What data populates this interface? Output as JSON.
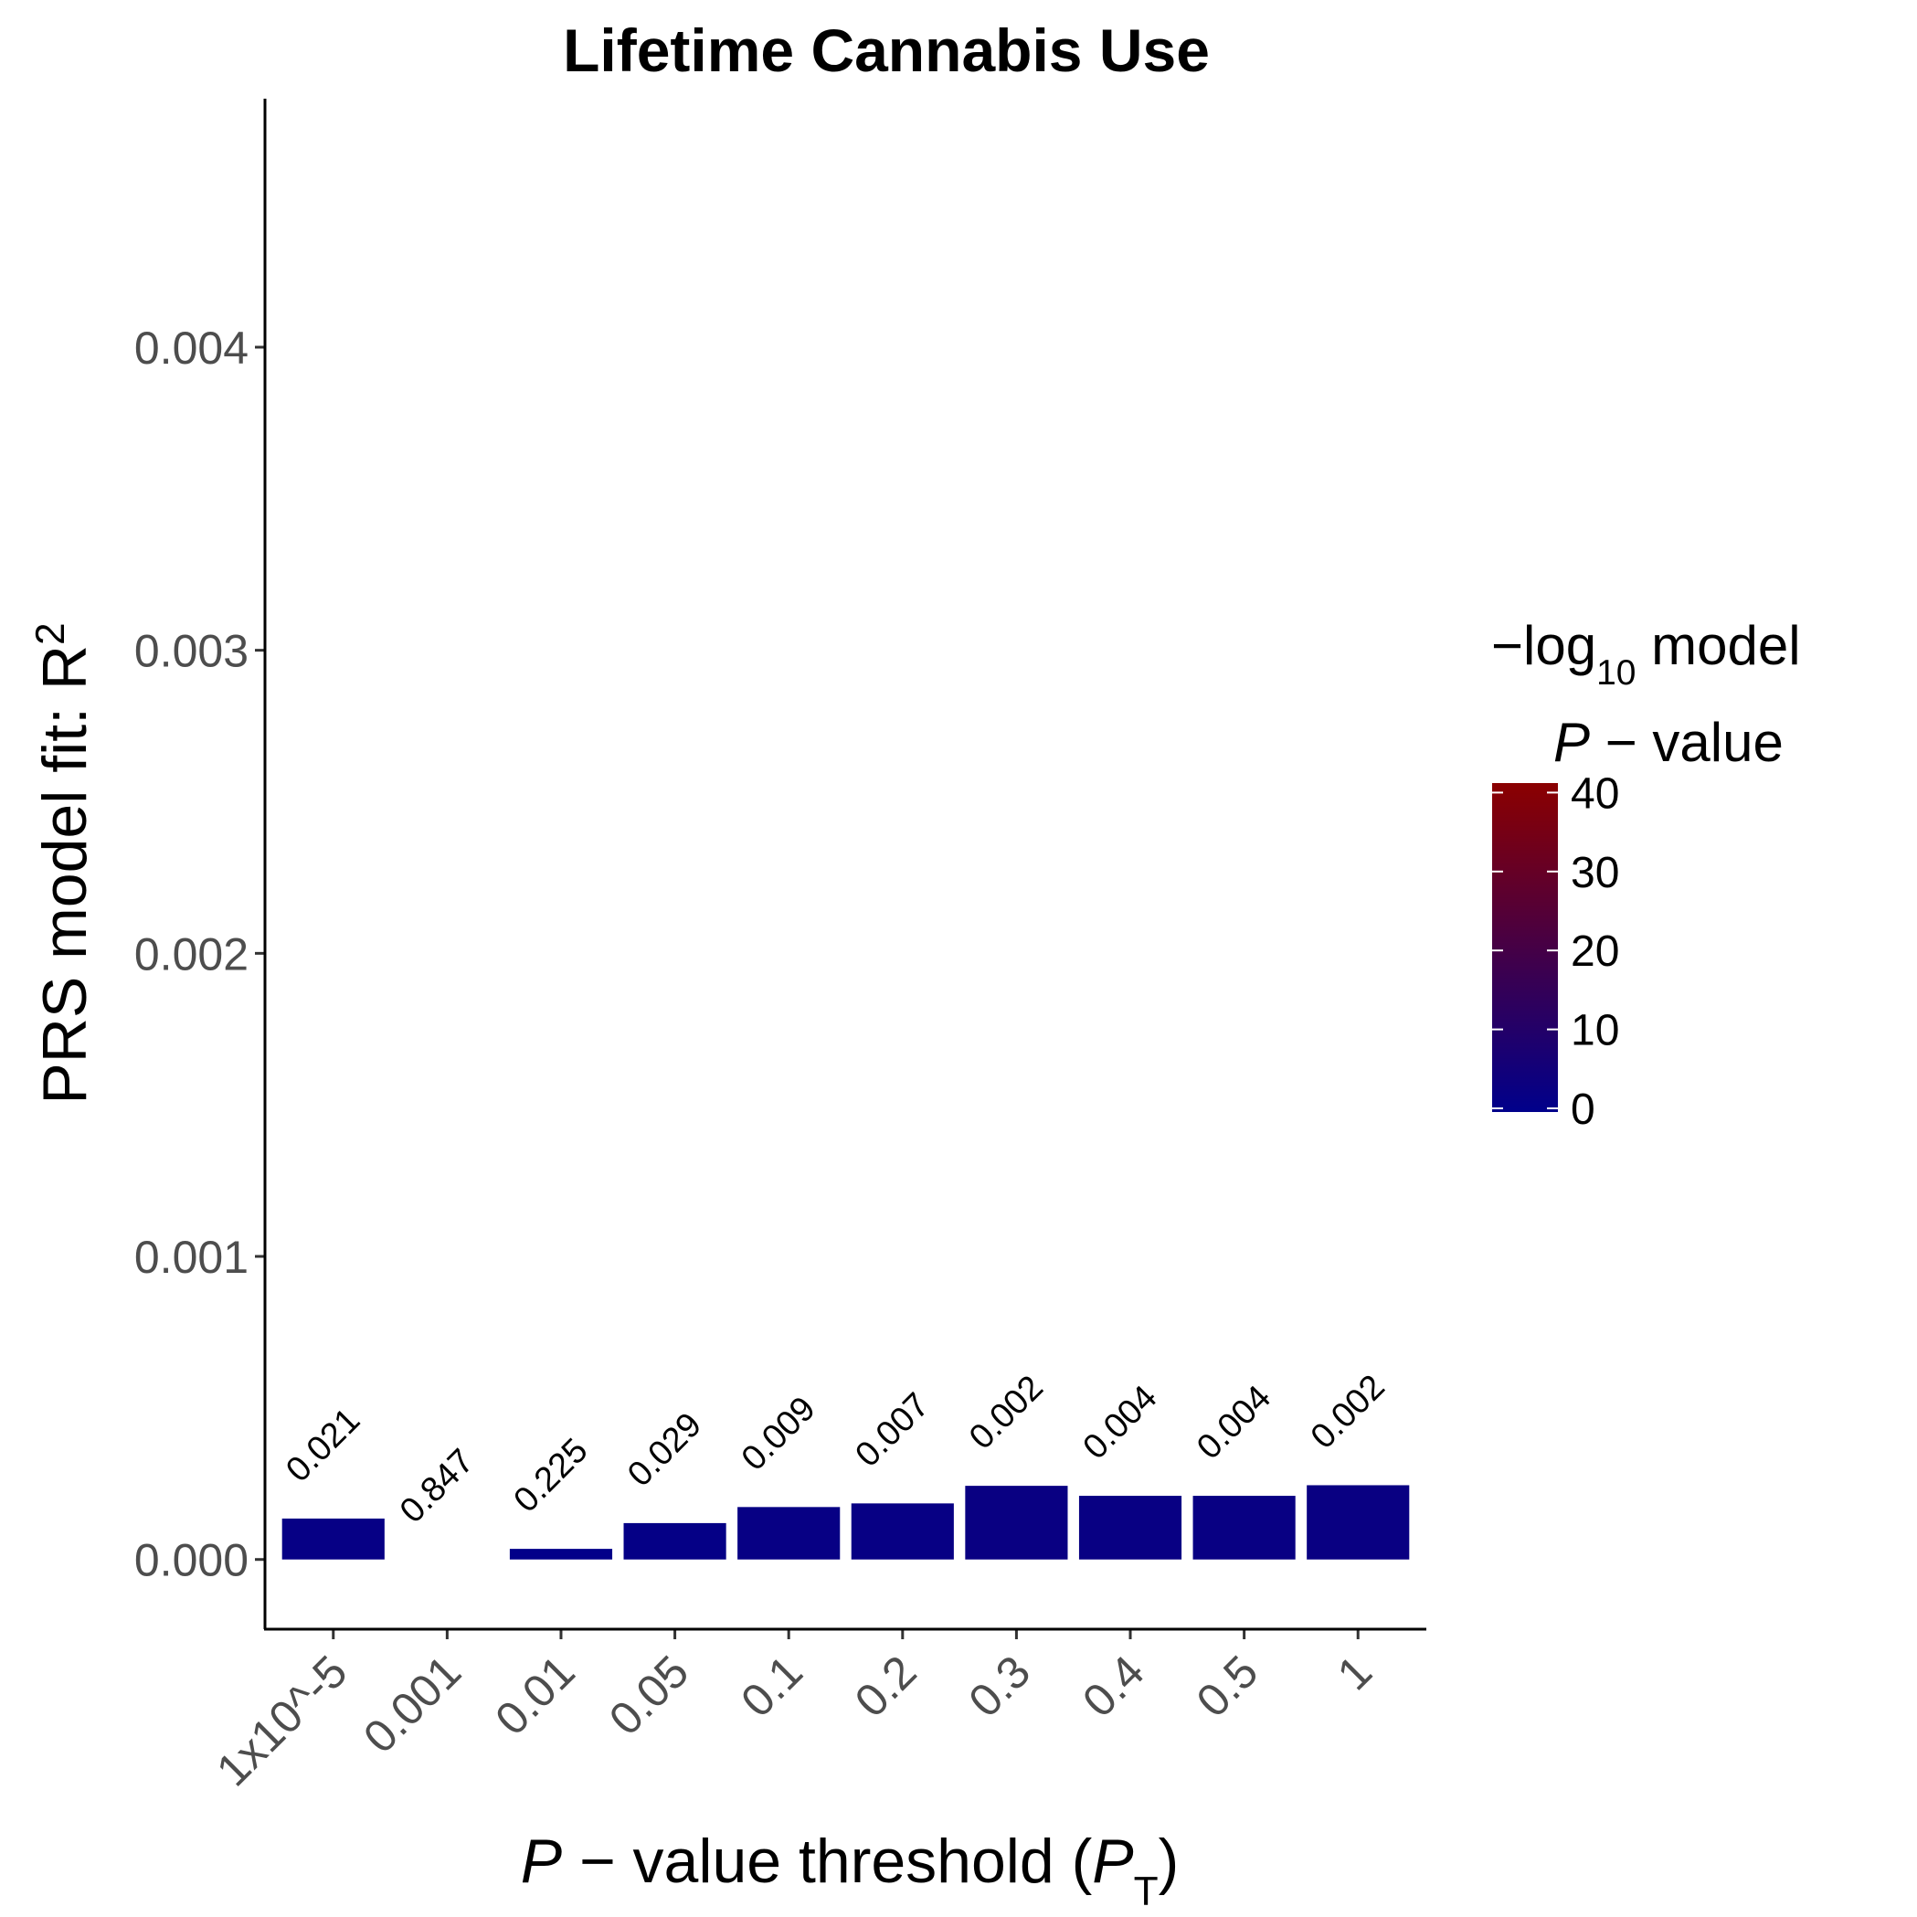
{
  "chart_data": {
    "type": "bar",
    "title": "Lifetime Cannabis Use",
    "xlabel": {
      "italic": "P",
      "rest": " − value threshold (",
      "sym": "P",
      "sub": "T",
      "close": ")"
    },
    "ylabel": {
      "text": "PRS model fit:  R",
      "sup": "2"
    },
    "categories": [
      "1x10^-5",
      "0.001",
      "0.01",
      "0.05",
      "0.1",
      "0.2",
      "0.3",
      "0.4",
      "0.5",
      "1"
    ],
    "values": [
      0.000135,
      0.0,
      3.5e-05,
      0.00012,
      0.000173,
      0.000185,
      0.000243,
      0.00021,
      0.00021,
      0.000245
    ],
    "data_labels": [
      "0.021",
      "0.847",
      "0.225",
      "0.029",
      "0.009",
      "0.007",
      "0.002",
      "0.004",
      "0.004",
      "0.002"
    ],
    "log_p": [
      1.68,
      0.07,
      0.65,
      1.54,
      2.05,
      2.15,
      2.7,
      2.4,
      2.4,
      2.7
    ],
    "ylim": [
      -0.00023,
      0.00482
    ],
    "yticks": [
      0.0,
      0.001,
      0.002,
      0.003,
      0.004
    ],
    "ytick_labels": [
      "0.000",
      "0.001",
      "0.002",
      "0.003",
      "0.004"
    ],
    "grid": false,
    "legend": {
      "position": "right",
      "title_line1_prefix": "−log",
      "title_line1_sub": "10",
      "title_line1_suffix": " model",
      "title_line2_italic": "P",
      "title_line2_rest": " − value",
      "range": [
        0,
        40
      ],
      "ticks": [
        0,
        10,
        20,
        30,
        40
      ],
      "tick_labels": [
        "0",
        "10",
        "20",
        "30",
        "40"
      ],
      "color_low": "#00008b",
      "color_high": "#8b0000"
    }
  }
}
